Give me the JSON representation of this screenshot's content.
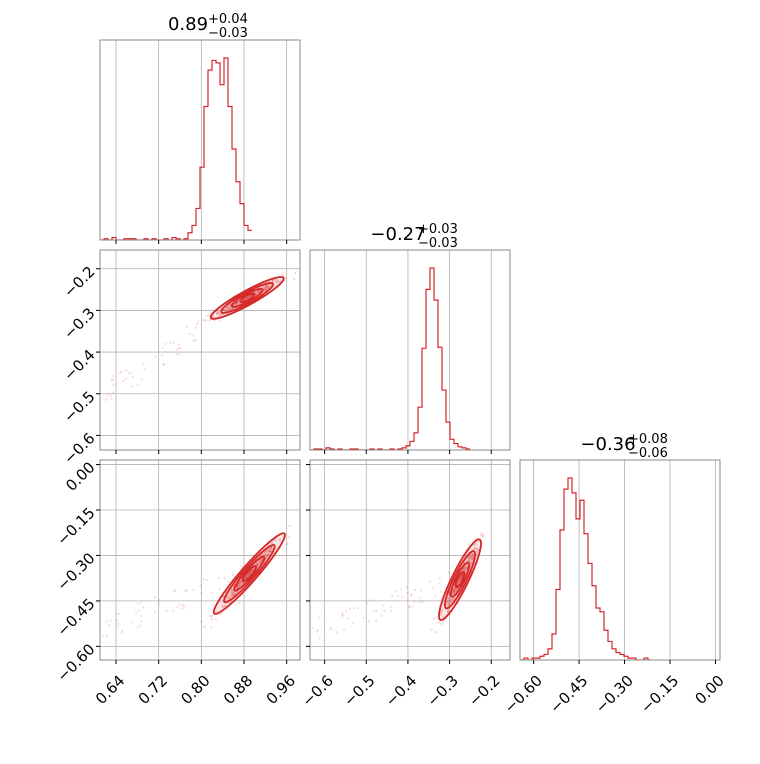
{
  "chart_data": {
    "type": "corner",
    "accent": "#d62728",
    "grid": true,
    "parameters": [
      {
        "title_main": "0.89",
        "title_sup": "+0.04",
        "title_sub": "−0.03",
        "range": [
          0.61,
          0.985
        ],
        "ticks": [
          "0.64",
          "0.72",
          "0.80",
          "0.88",
          "0.96"
        ],
        "tick_values": [
          0.64,
          0.72,
          0.8,
          0.88,
          0.96
        ]
      },
      {
        "title_main": "−0.27",
        "title_sup": "+0.03",
        "title_sub": "−0.03",
        "range": [
          -0.635,
          -0.155
        ],
        "ticks": [
          "−0.6",
          "−0.5",
          "−0.4",
          "−0.3",
          "−0.2"
        ],
        "tick_values": [
          -0.6,
          -0.5,
          -0.4,
          -0.3,
          -0.2
        ]
      },
      {
        "title_main": "−0.36",
        "title_sup": "+0.08",
        "title_sub": "−0.06",
        "range": [
          -0.645,
          0.015
        ],
        "ticks": [
          "−0.60",
          "−0.45",
          "−0.30",
          "−0.15",
          "0.00"
        ],
        "tick_values": [
          -0.6,
          -0.45,
          -0.3,
          -0.15,
          0.0
        ]
      }
    ],
    "histograms": [
      {
        "param": 0,
        "bin_start": 0.61,
        "bin_width": 0.0075,
        "counts": [
          0,
          1,
          0,
          2,
          0,
          0,
          1,
          1,
          1,
          0,
          0,
          1,
          0,
          1,
          0,
          0,
          1,
          0,
          2,
          1,
          0,
          1,
          6,
          12,
          26,
          60,
          110,
          140,
          148,
          146,
          128,
          150,
          110,
          75,
          48,
          30,
          12,
          8
        ]
      },
      {
        "param": 1,
        "bin_start": -0.635,
        "bin_width": 0.0096,
        "counts": [
          0,
          1,
          1,
          0,
          2,
          1,
          0,
          1,
          0,
          0,
          1,
          1,
          0,
          0,
          0,
          1,
          0,
          1,
          0,
          0,
          1,
          0,
          1,
          2,
          4,
          8,
          16,
          40,
          95,
          150,
          170,
          140,
          96,
          56,
          26,
          10,
          6,
          3,
          2,
          1
        ]
      },
      {
        "param": 2,
        "bin_start": -0.645,
        "bin_width": 0.0132,
        "counts": [
          0,
          1,
          0,
          1,
          1,
          2,
          3,
          6,
          14,
          38,
          70,
          92,
          98,
          90,
          76,
          86,
          68,
          52,
          40,
          28,
          26,
          16,
          10,
          6,
          4,
          3,
          2,
          1,
          1,
          0,
          0,
          1,
          0
        ]
      }
    ],
    "correlations": [
      {
        "x_param": 0,
        "y_param": 1,
        "mean": [
          0.886,
          -0.27
        ],
        "sigma": [
          0.036,
          0.026
        ],
        "rho": 0.95
      },
      {
        "x_param": 0,
        "y_param": 2,
        "mean": [
          0.89,
          -0.36
        ],
        "sigma": [
          0.035,
          0.07
        ],
        "rho": 0.97
      },
      {
        "x_param": 1,
        "y_param": 2,
        "mean": [
          -0.275,
          -0.38
        ],
        "sigma": [
          0.026,
          0.07
        ],
        "rho": 0.93
      }
    ]
  }
}
